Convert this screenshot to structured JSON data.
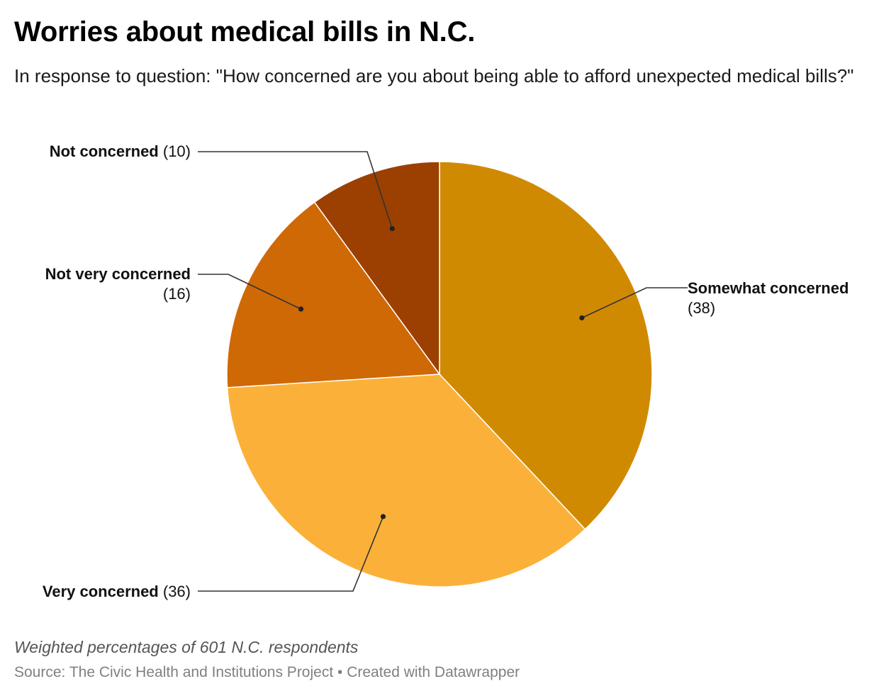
{
  "header": {
    "title": "Worries about medical bills in N.C.",
    "subtitle": "In response to question: \"How concerned are you about being able to afford unexpected medical bills?\""
  },
  "chart_data": {
    "type": "pie",
    "title": "Worries about medical bills in N.C.",
    "subtitle": "In response to question: \"How concerned are you about being able to afford unexpected medical bills?\"",
    "unit": "weighted percent of respondents",
    "slices": [
      {
        "label": "Somewhat concerned",
        "value": 38,
        "value_text": "(38)",
        "color": "#d08a02"
      },
      {
        "label": "Very concerned",
        "value": 36,
        "value_text": "(36)",
        "color": "#fbb139"
      },
      {
        "label": "Not very concerned",
        "value": 16,
        "value_text": "(16)",
        "color": "#cf6906"
      },
      {
        "label": "Not concerned",
        "value": 10,
        "value_text": "(10)",
        "color": "#9c4001"
      }
    ]
  },
  "footer": {
    "note": "Weighted percentages of 601 N.C. respondents",
    "source": "Source: The Civic Health and Institutions Project • Created with Datawrapper"
  }
}
